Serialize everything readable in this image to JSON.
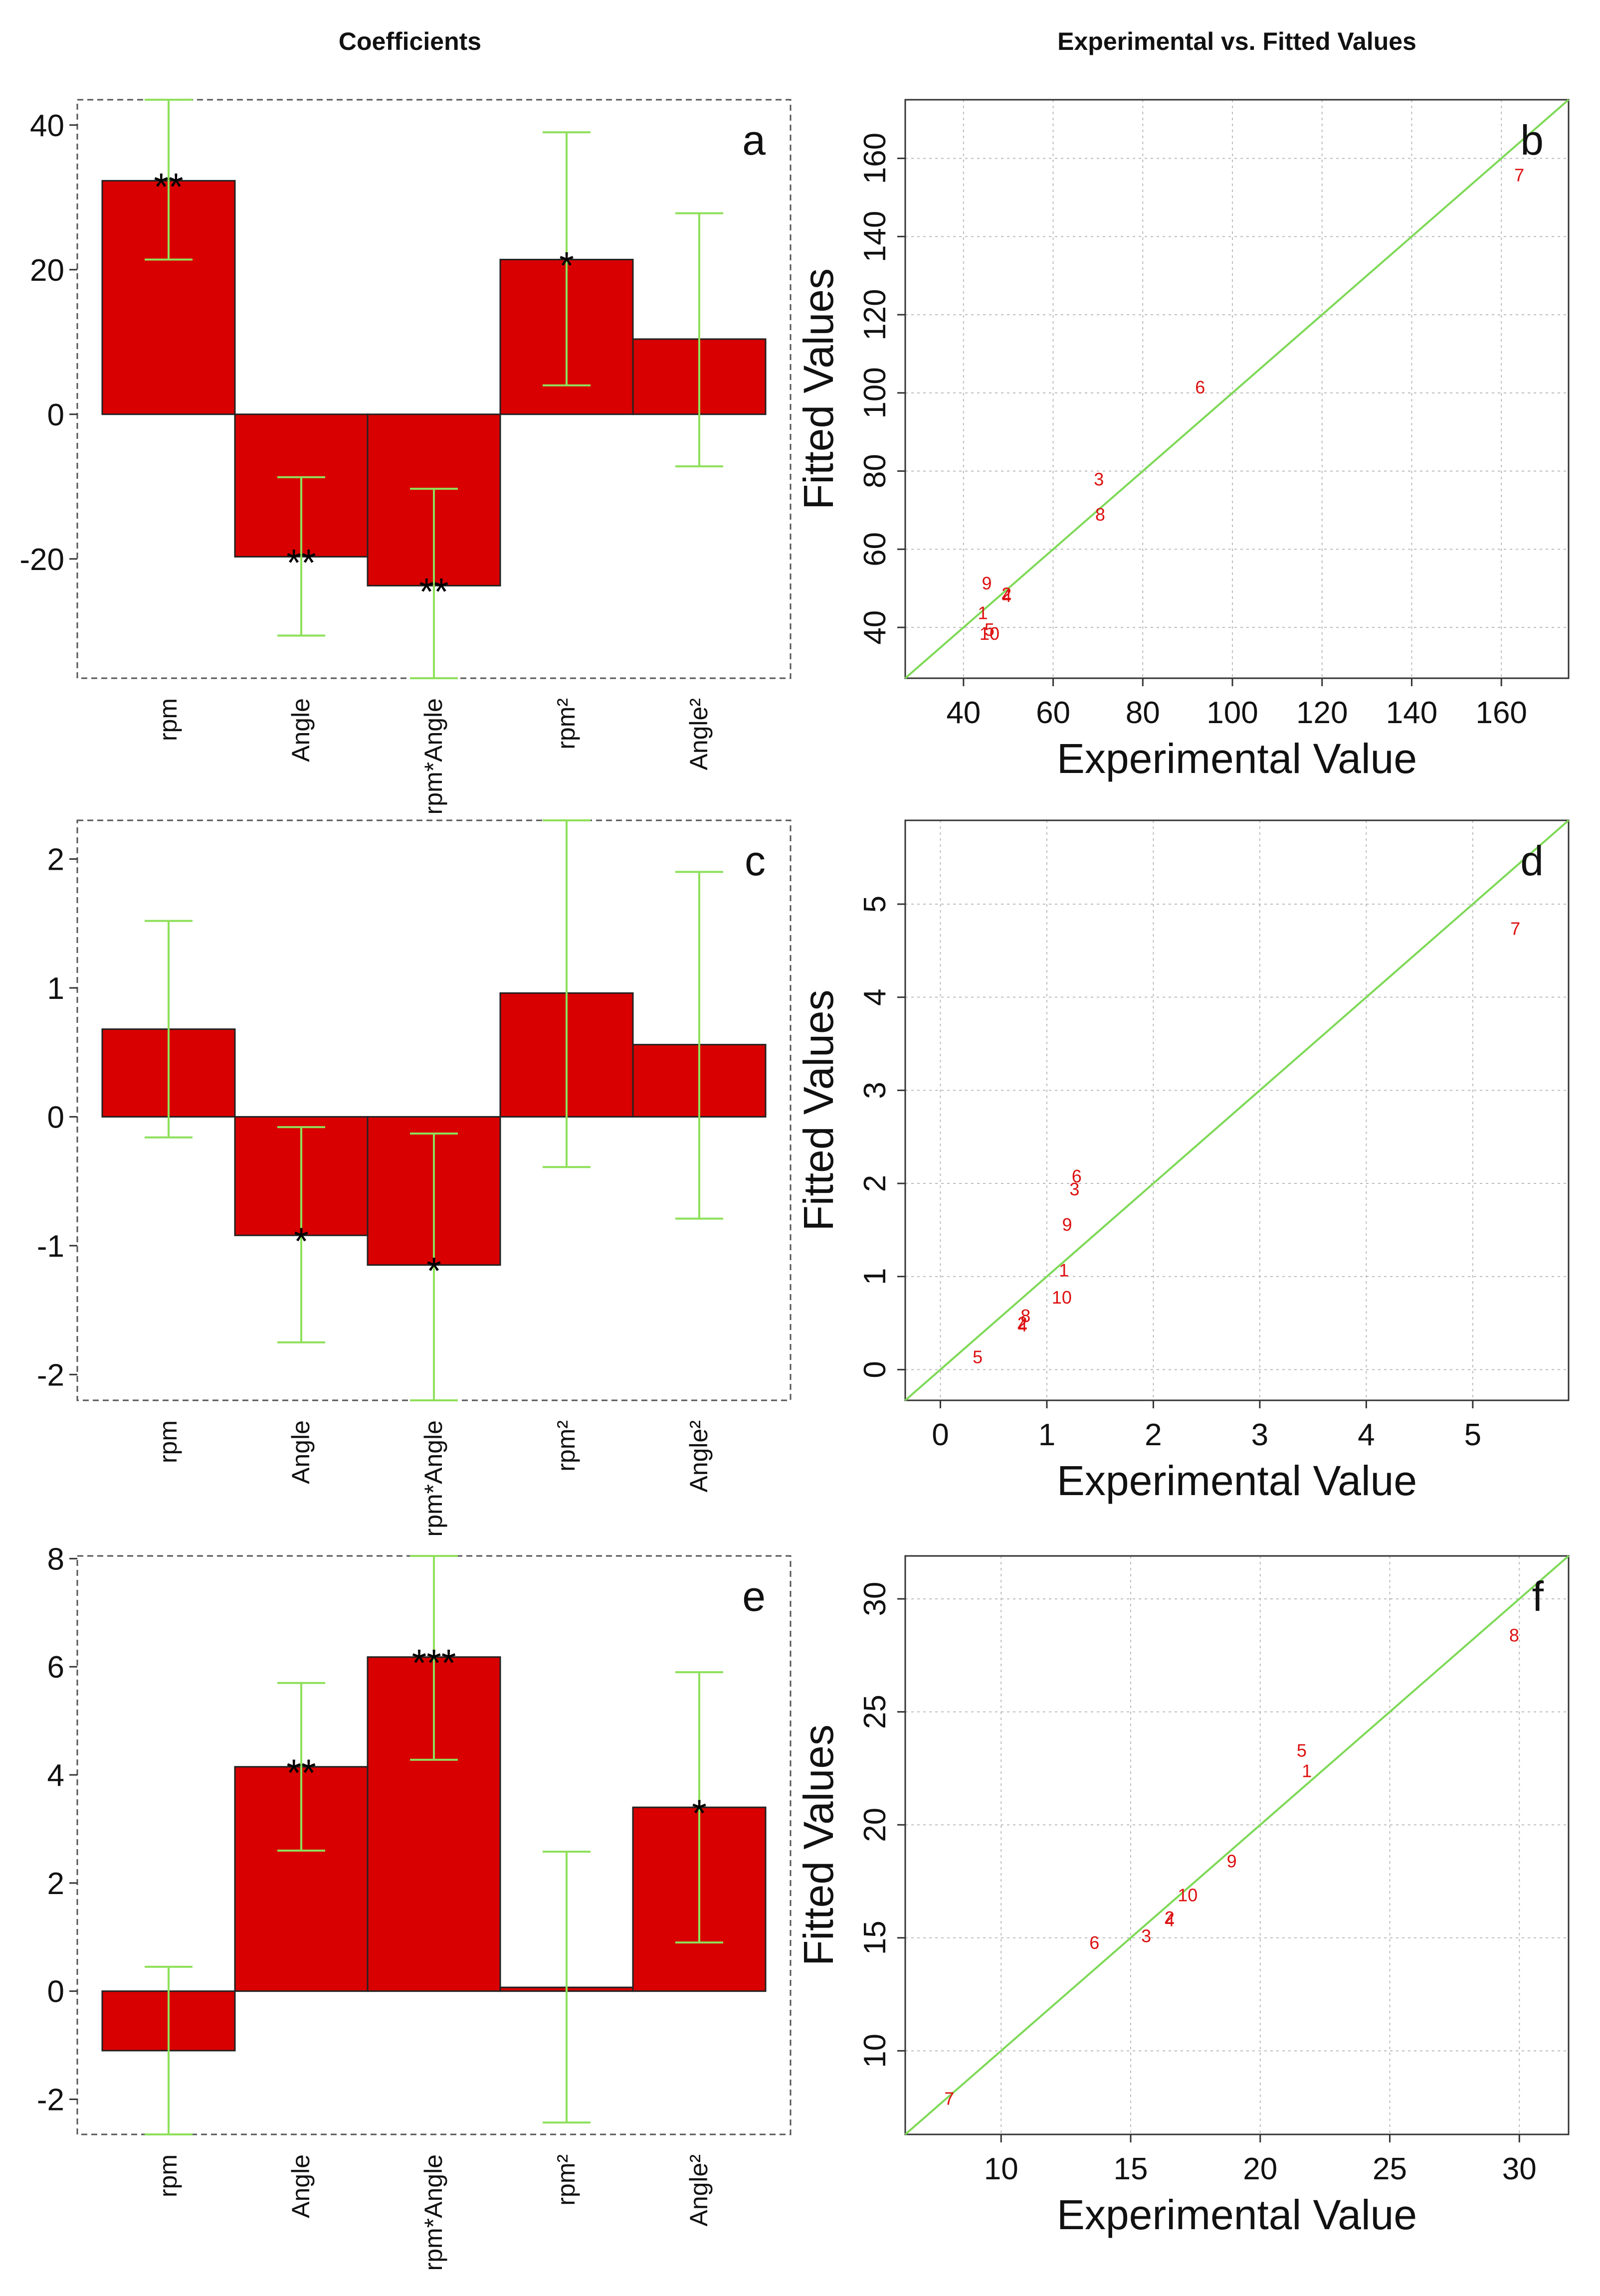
{
  "titles": {
    "left": "Coefficients",
    "right": "Experimental vs. Fitted Values"
  },
  "colors": {
    "bar_fill": "#d80000",
    "bar_stroke": "#222222",
    "error_bar": "#8ee05a",
    "fit_line": "#7ed957",
    "point": "#dd1010",
    "grid": "#bbbbbb"
  },
  "chart_data": [
    {
      "panel": "a",
      "type": "bar",
      "title": "Coefficients",
      "categories": [
        "rpm",
        "Angle",
        "rpm*Angle",
        "rpm²",
        "Angle²"
      ],
      "values": [
        32.3,
        -19.7,
        -23.7,
        21.4,
        10.4
      ],
      "error_low": [
        21.4,
        -30.6,
        -36.5,
        4.0,
        -7.2
      ],
      "error_high": [
        43.5,
        -8.7,
        -10.3,
        39.0,
        27.8
      ],
      "significance": [
        "**",
        "**",
        "**",
        "*",
        ""
      ],
      "yticks": [
        -20,
        0,
        20,
        40
      ],
      "ytick_labels": [
        "-20",
        "0",
        "20",
        "40"
      ],
      "ylim": [
        -36.5,
        43.5
      ]
    },
    {
      "panel": "b",
      "type": "scatter",
      "title": "Experimental vs. Fitted Values",
      "xlabel": "Experimental Value",
      "ylabel": "Fitted Values",
      "xlim": [
        27,
        175
      ],
      "ylim": [
        27,
        175
      ],
      "xticks": [
        40,
        60,
        80,
        100,
        120,
        140,
        160
      ],
      "xtick_labels": [
        "40",
        "60",
        "80",
        "100",
        "120",
        "140",
        "160"
      ],
      "yticks": [
        40,
        60,
        80,
        100,
        120,
        140,
        160
      ],
      "ytick_labels": [
        "40",
        "60",
        "80",
        "100",
        "120",
        "140",
        "160"
      ],
      "points": [
        {
          "label": "1",
          "x": 44.3,
          "y": 43.8
        },
        {
          "label": "2",
          "x": 49.6,
          "y": 48.6
        },
        {
          "label": "3",
          "x": 70.2,
          "y": 78.0
        },
        {
          "label": "4",
          "x": 49.6,
          "y": 48.2
        },
        {
          "label": "5",
          "x": 45.8,
          "y": 39.5
        },
        {
          "label": "6",
          "x": 92.8,
          "y": 101.5
        },
        {
          "label": "7",
          "x": 164.0,
          "y": 155.8
        },
        {
          "label": "8",
          "x": 70.5,
          "y": 69.0
        },
        {
          "label": "9",
          "x": 45.2,
          "y": 51.4
        },
        {
          "label": "10",
          "x": 45.8,
          "y": 38.5
        }
      ]
    },
    {
      "panel": "c",
      "type": "bar",
      "categories": [
        "rpm",
        "Angle",
        "rpm*Angle",
        "rpm²",
        "Angle²"
      ],
      "values": [
        0.68,
        -0.92,
        -1.15,
        0.96,
        0.56
      ],
      "error_low": [
        -0.16,
        -1.75,
        -2.2,
        -0.39,
        -0.79
      ],
      "error_high": [
        1.52,
        -0.08,
        -0.13,
        2.3,
        1.9
      ],
      "significance": [
        "",
        "*",
        "*",
        "",
        ""
      ],
      "yticks": [
        -2,
        -1,
        0,
        1,
        2
      ],
      "ytick_labels": [
        "-2",
        "-1",
        "0",
        "1",
        "2"
      ],
      "ylim": [
        -2.2,
        2.3
      ]
    },
    {
      "panel": "d",
      "type": "scatter",
      "xlabel": "Experimental Value",
      "ylabel": "Fitted Values",
      "xlim": [
        -0.33,
        5.9
      ],
      "ylim": [
        -0.33,
        5.9
      ],
      "xticks": [
        0,
        1,
        2,
        3,
        4,
        5
      ],
      "xtick_labels": [
        "0",
        "1",
        "2",
        "3",
        "4",
        "5"
      ],
      "yticks": [
        0,
        1,
        2,
        3,
        4,
        5
      ],
      "ytick_labels": [
        "0",
        "1",
        "2",
        "3",
        "4",
        "5"
      ],
      "points": [
        {
          "label": "1",
          "x": 1.16,
          "y": 1.07
        },
        {
          "label": "2",
          "x": 0.77,
          "y": 0.5
        },
        {
          "label": "3",
          "x": 1.26,
          "y": 1.94
        },
        {
          "label": "4",
          "x": 0.77,
          "y": 0.48
        },
        {
          "label": "5",
          "x": 0.35,
          "y": 0.14
        },
        {
          "label": "6",
          "x": 1.28,
          "y": 2.08
        },
        {
          "label": "7",
          "x": 5.4,
          "y": 4.74
        },
        {
          "label": "8",
          "x": 0.8,
          "y": 0.58
        },
        {
          "label": "9",
          "x": 1.19,
          "y": 1.56
        },
        {
          "label": "10",
          "x": 1.14,
          "y": 0.78
        }
      ]
    },
    {
      "panel": "e",
      "type": "bar",
      "categories": [
        "rpm",
        "Angle",
        "rpm*Angle",
        "rpm²",
        "Angle²"
      ],
      "values": [
        -1.1,
        4.15,
        6.18,
        0.07,
        3.4
      ],
      "error_low": [
        -2.65,
        2.6,
        4.28,
        -2.43,
        0.9
      ],
      "error_high": [
        0.45,
        5.7,
        8.05,
        2.58,
        5.9
      ],
      "significance": [
        "",
        "**",
        "***",
        "",
        "*"
      ],
      "yticks": [
        -2,
        0,
        2,
        4,
        6,
        8
      ],
      "ytick_labels": [
        "-2",
        "0",
        "2",
        "4",
        "6",
        "8"
      ],
      "ylim": [
        -2.65,
        8.05
      ]
    },
    {
      "panel": "f",
      "type": "scatter",
      "xlabel": "Experimental Value",
      "ylabel": "Fitted Values",
      "xlim": [
        6.3,
        31.9
      ],
      "ylim": [
        6.3,
        31.9
      ],
      "xticks": [
        10,
        15,
        20,
        25,
        30
      ],
      "xtick_labels": [
        "10",
        "15",
        "20",
        "25",
        "30"
      ],
      "yticks": [
        10,
        15,
        20,
        25,
        30
      ],
      "ytick_labels": [
        "10",
        "15",
        "20",
        "25",
        "30"
      ],
      "points": [
        {
          "label": "1",
          "x": 21.8,
          "y": 22.4
        },
        {
          "label": "2",
          "x": 16.5,
          "y": 15.9
        },
        {
          "label": "3",
          "x": 15.6,
          "y": 15.1
        },
        {
          "label": "4",
          "x": 16.5,
          "y": 15.8
        },
        {
          "label": "5",
          "x": 21.6,
          "y": 23.3
        },
        {
          "label": "6",
          "x": 13.6,
          "y": 14.8
        },
        {
          "label": "7",
          "x": 8.0,
          "y": 7.9
        },
        {
          "label": "8",
          "x": 29.8,
          "y": 28.4
        },
        {
          "label": "9",
          "x": 18.9,
          "y": 18.4
        },
        {
          "label": "10",
          "x": 17.2,
          "y": 16.9
        }
      ]
    }
  ]
}
